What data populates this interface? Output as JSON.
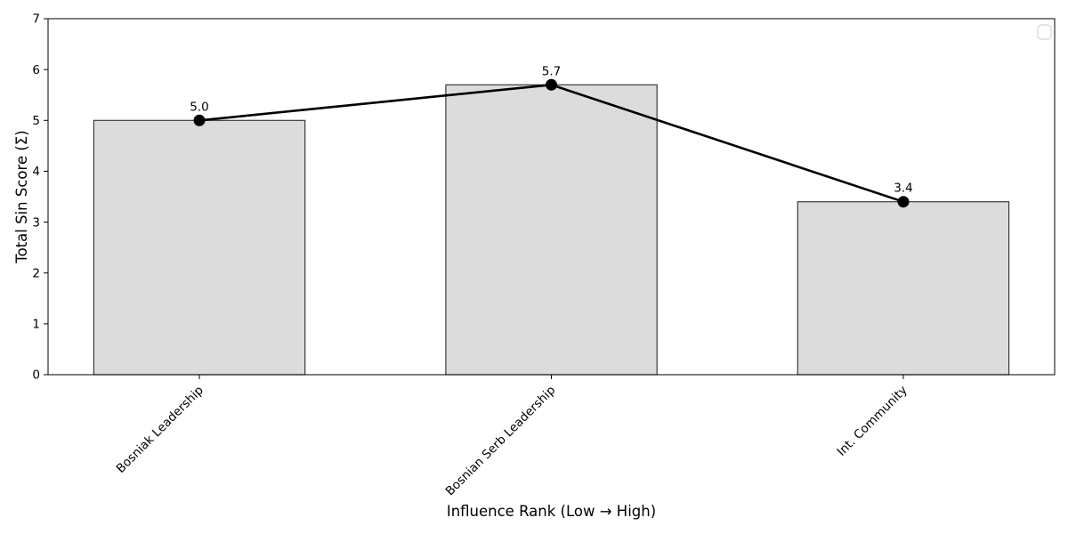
{
  "figure": {
    "background": "#ffffff"
  },
  "chart_data": {
    "type": "bar",
    "categories": [
      "Bosniak Leadership",
      "Bosnian Serb Leadership",
      "Int. Community"
    ],
    "values": [
      5.0,
      5.7,
      3.4
    ],
    "value_labels": [
      "5.0",
      "5.7",
      "3.4"
    ],
    "series": [
      {
        "name": "total-sin-score-bars",
        "type": "bar",
        "values": [
          5.0,
          5.7,
          3.4
        ]
      },
      {
        "name": "trend-line",
        "type": "line",
        "values": [
          5.0,
          5.7,
          3.4
        ]
      }
    ],
    "title": "",
    "xlabel": "Influence Rank (Low → High)",
    "ylabel": "Total Sin Score (Σ)",
    "ylim": [
      0,
      7
    ],
    "yticks": [
      "0",
      "1",
      "2",
      "3",
      "4",
      "5",
      "6",
      "7"
    ],
    "grid": false,
    "legend": {
      "visible": true,
      "entries": [],
      "position": "upper-right"
    },
    "colors": {
      "bar_fill": "#dcdcdc",
      "bar_edge": "#3a3a3a",
      "line": "#000000",
      "marker": "#000000",
      "axis": "#000000",
      "text": "#000000",
      "legend_border": "#d4d4d4",
      "legend_fill": "#ffffff"
    }
  }
}
